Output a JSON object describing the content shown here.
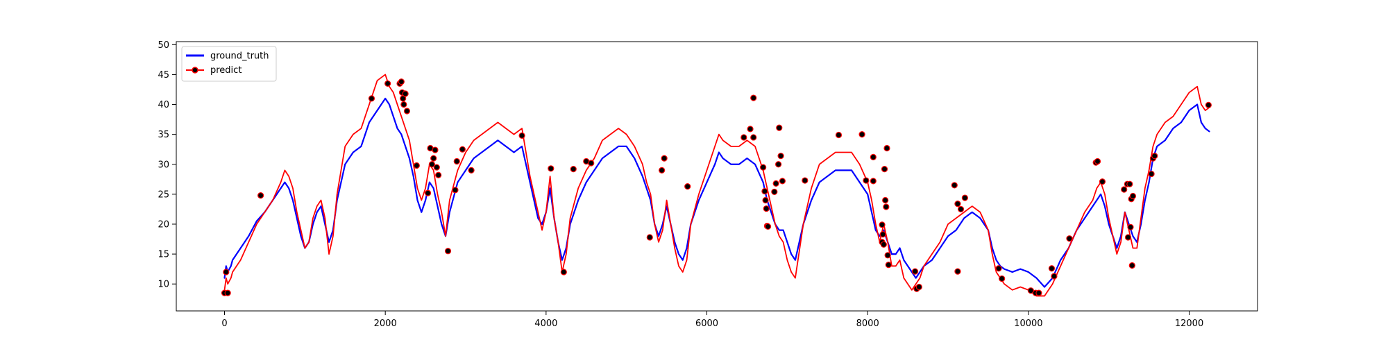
{
  "chart_data": {
    "type": "line",
    "title": "",
    "xlabel": "",
    "ylabel": "",
    "xlim": [
      -600,
      12850
    ],
    "ylim": [
      5.5,
      50.5
    ],
    "x_ticks": [
      0,
      2000,
      4000,
      6000,
      8000,
      10000,
      12000
    ],
    "y_ticks": [
      10,
      15,
      20,
      25,
      30,
      35,
      40,
      45,
      50
    ],
    "x_tick_labels": [
      "0",
      "2000",
      "4000",
      "6000",
      "8000",
      "10000",
      "12000"
    ],
    "y_tick_labels": [
      "10",
      "15",
      "20",
      "25",
      "30",
      "35",
      "40",
      "45",
      "50"
    ],
    "grid": false,
    "legend_position": "upper-left",
    "series": [
      {
        "name": "ground_truth",
        "color": "#0000ff",
        "marker": "none",
        "x": [
          0,
          20,
          40,
          60,
          80,
          100,
          200,
          300,
          400,
          500,
          600,
          700,
          750,
          800,
          850,
          900,
          950,
          1000,
          1050,
          1100,
          1150,
          1200,
          1250,
          1300,
          1350,
          1400,
          1450,
          1500,
          1600,
          1700,
          1800,
          1900,
          2000,
          2050,
          2100,
          2150,
          2200,
          2250,
          2300,
          2350,
          2400,
          2450,
          2500,
          2550,
          2600,
          2650,
          2700,
          2750,
          2800,
          2900,
          3000,
          3100,
          3200,
          3300,
          3400,
          3500,
          3600,
          3700,
          3750,
          3800,
          3850,
          3900,
          3950,
          4000,
          4050,
          4100,
          4150,
          4200,
          4250,
          4300,
          4400,
          4500,
          4600,
          4700,
          4800,
          4900,
          5000,
          5100,
          5200,
          5250,
          5300,
          5350,
          5400,
          5450,
          5500,
          5550,
          5600,
          5650,
          5700,
          5750,
          5800,
          5900,
          6000,
          6100,
          6150,
          6200,
          6300,
          6400,
          6500,
          6600,
          6700,
          6750,
          6800,
          6850,
          6900,
          6950,
          7000,
          7050,
          7100,
          7200,
          7300,
          7400,
          7500,
          7600,
          7700,
          7800,
          7900,
          8000,
          8050,
          8100,
          8150,
          8200,
          8250,
          8300,
          8350,
          8400,
          8450,
          8500,
          8550,
          8600,
          8650,
          8700,
          8800,
          8900,
          9000,
          9100,
          9200,
          9300,
          9400,
          9500,
          9550,
          9600,
          9650,
          9700,
          9800,
          9900,
          10000,
          10100,
          10200,
          10300,
          10400,
          10500,
          10600,
          10700,
          10800,
          10850,
          10900,
          10950,
          11000,
          11050,
          11100,
          11150,
          11200,
          11250,
          11300,
          11350,
          11400,
          11450,
          11500,
          11550,
          11600,
          11700,
          11800,
          11900,
          12000,
          12100,
          12150,
          12200,
          12250
        ],
        "y": [
          11,
          13,
          12,
          12.5,
          13,
          14,
          16,
          18,
          20.5,
          22,
          24,
          26,
          27,
          26,
          24,
          21,
          18,
          16,
          17,
          20,
          22,
          23,
          20,
          17,
          19,
          24,
          27,
          30,
          32,
          33,
          37,
          39,
          41,
          40,
          38,
          36,
          35,
          33,
          31,
          28,
          24,
          22,
          24,
          27,
          26,
          23,
          20,
          18,
          22,
          27,
          29,
          31,
          32,
          33,
          34,
          33,
          32,
          33,
          30,
          27,
          24,
          21,
          20,
          22,
          26,
          21,
          17,
          14,
          16,
          20,
          24,
          27,
          29,
          31,
          32,
          33,
          33,
          31,
          28,
          26,
          24,
          20,
          18,
          20,
          23,
          20,
          17,
          15,
          14,
          16,
          20,
          24,
          27,
          30,
          32,
          31,
          30,
          30,
          31,
          30,
          27,
          24,
          22,
          20,
          19,
          19,
          17,
          15,
          14,
          20,
          24,
          27,
          28,
          29,
          29,
          29,
          27,
          25,
          22,
          19,
          18,
          19,
          17,
          15,
          15,
          16,
          14,
          13,
          12,
          11,
          12,
          13,
          14,
          16,
          18,
          19,
          21,
          22,
          21,
          19,
          16,
          14,
          13,
          12.5,
          12,
          12.5,
          12,
          11,
          9.5,
          11,
          14,
          16,
          19,
          21,
          23,
          24,
          25,
          23,
          20,
          18,
          16,
          18,
          22,
          20,
          18,
          17,
          20,
          24,
          27,
          31,
          33,
          34,
          36,
          37,
          39,
          40,
          37,
          36,
          35.5
        ]
      },
      {
        "name": "predict",
        "color": "#ff0000",
        "marker": "circle",
        "x": [
          0,
          20,
          40,
          60,
          80,
          100,
          200,
          300,
          400,
          500,
          600,
          700,
          750,
          800,
          850,
          900,
          950,
          1000,
          1050,
          1100,
          1150,
          1200,
          1250,
          1300,
          1350,
          1400,
          1450,
          1500,
          1600,
          1700,
          1800,
          1900,
          2000,
          2050,
          2100,
          2150,
          2200,
          2250,
          2300,
          2350,
          2400,
          2450,
          2500,
          2550,
          2600,
          2650,
          2700,
          2750,
          2800,
          2900,
          3000,
          3100,
          3200,
          3300,
          3400,
          3500,
          3600,
          3700,
          3750,
          3800,
          3850,
          3900,
          3950,
          4000,
          4050,
          4100,
          4150,
          4200,
          4250,
          4300,
          4400,
          4500,
          4600,
          4700,
          4800,
          4900,
          5000,
          5100,
          5200,
          5250,
          5300,
          5350,
          5400,
          5450,
          5500,
          5550,
          5600,
          5650,
          5700,
          5750,
          5800,
          5900,
          6000,
          6100,
          6150,
          6200,
          6300,
          6400,
          6500,
          6600,
          6700,
          6750,
          6800,
          6850,
          6900,
          6950,
          7000,
          7050,
          7100,
          7200,
          7300,
          7400,
          7500,
          7600,
          7700,
          7800,
          7900,
          8000,
          8050,
          8100,
          8150,
          8200,
          8250,
          8300,
          8350,
          8400,
          8450,
          8500,
          8550,
          8600,
          8650,
          8700,
          8800,
          8900,
          9000,
          9100,
          9200,
          9300,
          9400,
          9500,
          9550,
          9600,
          9650,
          9700,
          9800,
          9900,
          10000,
          10100,
          10200,
          10300,
          10400,
          10500,
          10600,
          10700,
          10800,
          10850,
          10900,
          10950,
          11000,
          11050,
          11100,
          11150,
          11200,
          11250,
          11300,
          11350,
          11400,
          11450,
          11500,
          11550,
          11600,
          11700,
          11800,
          11900,
          12000,
          12100,
          12150,
          12200,
          12250
        ],
        "y": [
          9,
          11,
          10,
          10.5,
          11,
          12,
          14,
          17,
          20,
          22,
          24,
          27,
          29,
          28,
          26,
          22,
          19,
          16,
          17,
          21,
          23,
          24,
          21,
          15,
          18,
          25,
          29,
          33,
          35,
          36,
          40,
          44,
          45,
          43,
          42,
          40,
          38,
          36,
          34,
          30,
          26,
          24,
          26,
          30,
          29,
          25,
          22,
          18,
          24,
          29,
          32,
          34,
          35,
          36,
          37,
          36,
          35,
          36,
          32,
          28,
          25,
          22,
          19,
          22,
          28,
          21,
          17,
          12,
          15,
          21,
          26,
          29,
          31,
          34,
          35,
          36,
          35,
          33,
          30,
          27,
          25,
          20,
          17,
          19,
          24,
          20,
          16,
          13,
          12,
          14,
          20,
          25,
          29,
          33,
          35,
          34,
          33,
          33,
          34,
          33,
          29,
          26,
          23,
          20,
          18,
          17,
          14,
          12,
          11,
          20,
          26,
          30,
          31,
          32,
          32,
          32,
          30,
          27,
          24,
          20,
          17,
          20,
          17,
          13,
          13,
          14,
          11,
          10,
          9,
          10,
          11,
          13,
          15,
          17,
          20,
          21,
          22,
          23,
          22,
          19,
          15,
          12,
          11,
          10,
          9,
          9.5,
          9,
          8,
          8,
          10,
          13,
          16,
          19,
          22,
          24,
          26,
          27,
          25,
          21,
          18,
          15,
          17,
          22,
          19,
          16,
          16,
          21,
          26,
          29,
          33,
          35,
          37,
          38,
          40,
          42,
          43,
          40,
          39,
          39.5
        ]
      }
    ],
    "predict_markers": [
      [
        20,
        12
      ],
      [
        0,
        8.5
      ],
      [
        40,
        8.5
      ],
      [
        450,
        24.8
      ],
      [
        1830,
        41
      ],
      [
        2030,
        43.5
      ],
      [
        2180,
        43.5
      ],
      [
        2200,
        43.8
      ],
      [
        2210,
        42
      ],
      [
        2220,
        41
      ],
      [
        2230,
        40
      ],
      [
        2250,
        41.8
      ],
      [
        2270,
        38.9
      ],
      [
        2390,
        29.8
      ],
      [
        2530,
        25.2
      ],
      [
        2560,
        32.7
      ],
      [
        2580,
        30
      ],
      [
        2600,
        31
      ],
      [
        2620,
        32.4
      ],
      [
        2640,
        29.5
      ],
      [
        2660,
        28.2
      ],
      [
        2780,
        15.5
      ],
      [
        2870,
        25.7
      ],
      [
        2890,
        30.5
      ],
      [
        2960,
        32.5
      ],
      [
        3070,
        29
      ],
      [
        3700,
        34.8
      ],
      [
        4060,
        29.3
      ],
      [
        4220,
        12
      ],
      [
        4340,
        29.2
      ],
      [
        4500,
        30.5
      ],
      [
        4560,
        30.2
      ],
      [
        5290,
        17.8
      ],
      [
        5440,
        29
      ],
      [
        5470,
        31
      ],
      [
        5760,
        26.3
      ],
      [
        6460,
        34.5
      ],
      [
        6540,
        35.9
      ],
      [
        6580,
        34.5
      ],
      [
        6580,
        41.1
      ],
      [
        6700,
        29.5
      ],
      [
        6720,
        25.5
      ],
      [
        6730,
        24
      ],
      [
        6740,
        22.6
      ],
      [
        6750,
        19.7
      ],
      [
        6760,
        19.6
      ],
      [
        6840,
        25.4
      ],
      [
        6860,
        26.8
      ],
      [
        6890,
        30
      ],
      [
        6900,
        36.1
      ],
      [
        6920,
        31.4
      ],
      [
        6940,
        27.2
      ],
      [
        7220,
        27.3
      ],
      [
        7640,
        34.9
      ],
      [
        7930,
        35
      ],
      [
        7980,
        27.3
      ],
      [
        8070,
        31.2
      ],
      [
        8070,
        27.2
      ],
      [
        8180,
        19.9
      ],
      [
        8180,
        17
      ],
      [
        8190,
        18.3
      ],
      [
        8200,
        16.6
      ],
      [
        8210,
        29.2
      ],
      [
        8220,
        24
      ],
      [
        8230,
        22.9
      ],
      [
        8240,
        32.7
      ],
      [
        8250,
        14.8
      ],
      [
        8260,
        13.2
      ],
      [
        8590,
        12.1
      ],
      [
        8610,
        9.2
      ],
      [
        8640,
        9.5
      ],
      [
        9080,
        26.5
      ],
      [
        9120,
        12.1
      ],
      [
        9120,
        23.4
      ],
      [
        9160,
        22.5
      ],
      [
        9210,
        24.4
      ],
      [
        9630,
        12.6
      ],
      [
        9670,
        10.9
      ],
      [
        10030,
        8.9
      ],
      [
        10090,
        8.5
      ],
      [
        10130,
        8.5
      ],
      [
        10290,
        12.6
      ],
      [
        10320,
        11.3
      ],
      [
        10510,
        17.6
      ],
      [
        10840,
        30.3
      ],
      [
        10860,
        30.5
      ],
      [
        10920,
        27.1
      ],
      [
        11190,
        25.8
      ],
      [
        11230,
        26.7
      ],
      [
        11240,
        17.8
      ],
      [
        11260,
        26.7
      ],
      [
        11270,
        19.5
      ],
      [
        11280,
        24.2
      ],
      [
        11290,
        13.1
      ],
      [
        11300,
        24.7
      ],
      [
        11530,
        28.4
      ],
      [
        11550,
        31
      ],
      [
        11570,
        31.4
      ],
      [
        12240,
        39.9
      ]
    ]
  }
}
